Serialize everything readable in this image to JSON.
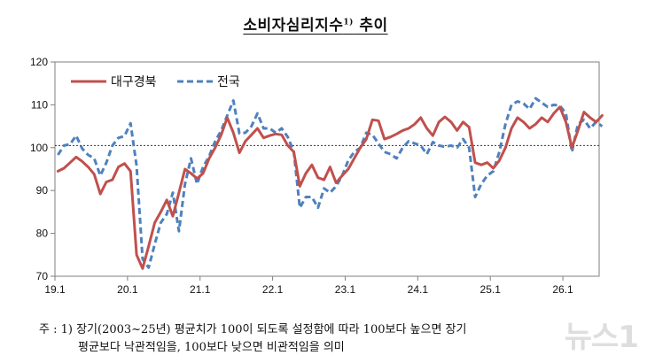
{
  "chart_data": {
    "type": "line",
    "title": "소비자심리지수",
    "title_sup": "1)",
    "title_suffix": " 추이",
    "ylim": [
      70,
      120
    ],
    "yticks": [
      70,
      80,
      90,
      100,
      110,
      120
    ],
    "xticks": [
      "19.1",
      "20.1",
      "21.1",
      "22.1",
      "23.1",
      "24.1",
      "25.1",
      "26.1"
    ],
    "reference_value": 100.5,
    "legend_position": "top-left",
    "grid": false,
    "series": [
      {
        "name": "대구경북",
        "color": "#c0504d",
        "style": "solid",
        "values": [
          94.5,
          95.2,
          96.5,
          97.8,
          96.8,
          95.5,
          93.8,
          89.2,
          92.0,
          92.5,
          95.5,
          96.3,
          94.5,
          75.0,
          71.8,
          77.0,
          82.5,
          85.0,
          87.8,
          84.0,
          89.5,
          95.0,
          94.0,
          92.8,
          94.0,
          97.5,
          100.0,
          103.0,
          107.0,
          103.5,
          98.8,
          101.5,
          103.0,
          104.5,
          102.3,
          102.8,
          103.2,
          103.0,
          100.5,
          99.0,
          91.0,
          94.0,
          96.0,
          93.0,
          92.5,
          95.5,
          91.8,
          93.5,
          95.0,
          97.5,
          100.0,
          102.0,
          106.5,
          106.3,
          102.0,
          102.5,
          103.2,
          104.0,
          104.5,
          105.5,
          107.0,
          104.5,
          102.8,
          106.0,
          107.2,
          106.0,
          104.0,
          106.0,
          104.8,
          96.5,
          96.0,
          96.5,
          95.2,
          97.0,
          100.0,
          104.5,
          107.0,
          106.0,
          104.5,
          105.5,
          107.0,
          106.0,
          108.0,
          109.5,
          106.0,
          100.0,
          104.0,
          108.3,
          107.0,
          106.0,
          107.5
        ]
      },
      {
        "name": "전국",
        "color": "#4f81bd",
        "style": "dashed",
        "values": [
          98.3,
          100.5,
          100.8,
          102.8,
          99.8,
          98.3,
          97.5,
          93.5,
          96.5,
          100.5,
          102.3,
          102.7,
          105.7,
          95.8,
          74.0,
          72.0,
          77.5,
          82.5,
          84.5,
          89.5,
          80.5,
          91.5,
          97.5,
          91.5,
          95.5,
          98.0,
          101.5,
          104.0,
          107.5,
          111.0,
          103.3,
          103.5,
          105.0,
          108.0,
          104.5,
          104.5,
          103.5,
          104.5,
          102.5,
          99.0,
          86.0,
          88.5,
          88.5,
          86.0,
          90.5,
          89.5,
          91.0,
          93.5,
          97.0,
          99.0,
          100.0,
          103.5,
          103.0,
          101.0,
          99.0,
          98.5,
          97.5,
          100.0,
          101.5,
          101.0,
          100.5,
          98.5,
          101.3,
          100.5,
          100.2,
          100.5,
          100.0,
          102.0,
          100.0,
          88.5,
          91.5,
          93.5,
          94.5,
          99.0,
          105.5,
          110.0,
          110.8,
          110.3,
          109.0,
          111.5,
          110.5,
          109.5,
          110.0,
          109.8,
          108.0,
          99.0,
          105.5,
          106.5,
          104.5,
          106.0,
          105.0
        ]
      }
    ]
  },
  "note": {
    "line1": "주 : 1) 장기(2003~25년) 평균치가 100이 되도록 설정함에 따라 100보다 높으면 장기",
    "line2": "평균보다 낙관적임을, 100보다 낮으면 비관적임을 의미"
  },
  "watermark": "뉴스1"
}
